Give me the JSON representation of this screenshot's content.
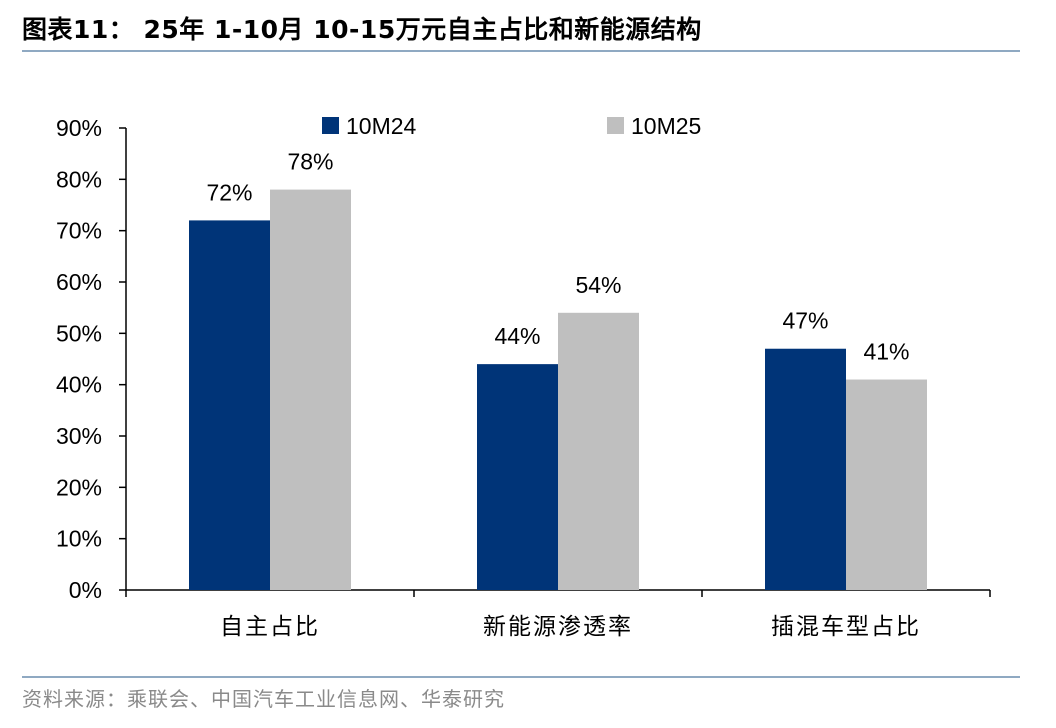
{
  "header": {
    "title": "图表11： 25年 1-10月 10-15万元自主占比和新能源结构"
  },
  "footer": {
    "source": "资料来源：乘联会、中国汽车工业信息网、华泰研究"
  },
  "colors": {
    "series_1": "#003478",
    "series_2": "#bfbfbf",
    "rule": "#8fa9c2",
    "source_text": "#8a8a8a"
  },
  "chart_data": {
    "type": "bar",
    "title": "",
    "xlabel": "",
    "ylabel": "",
    "categories": [
      "自主占比",
      "新能源渗透率",
      "插混车型占比"
    ],
    "series": [
      {
        "name": "10M24",
        "values": [
          72,
          44,
          47
        ],
        "labels": [
          "72%",
          "44%",
          "47%"
        ],
        "color": "#003478"
      },
      {
        "name": "10M25",
        "values": [
          78,
          54,
          41
        ],
        "labels": [
          "78%",
          "54%",
          "41%"
        ],
        "color": "#bfbfbf"
      }
    ],
    "ylim": [
      0,
      90
    ],
    "y_ticks": [
      0,
      10,
      20,
      30,
      40,
      50,
      60,
      70,
      80,
      90
    ],
    "y_tick_labels": [
      "0%",
      "10%",
      "20%",
      "30%",
      "40%",
      "50%",
      "60%",
      "70%",
      "80%",
      "90%"
    ],
    "grid": false,
    "legend": "top"
  }
}
